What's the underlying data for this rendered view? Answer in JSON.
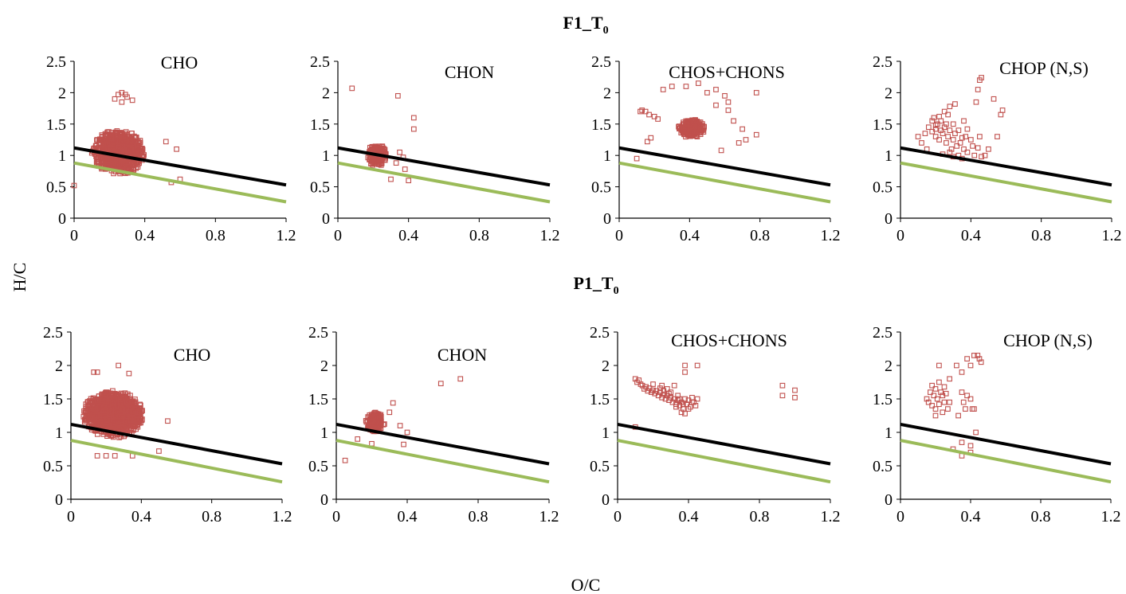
{
  "figure": {
    "y_axis_label": "H/C",
    "x_axis_label": "O/C",
    "rows": [
      {
        "title_main": "F1_T",
        "title_sub": "0"
      },
      {
        "title_main": "P1_T",
        "title_sub": "0"
      }
    ],
    "colors": {
      "points": "#c0504d",
      "upper_line": "#000000",
      "lower_line": "#9bbb59"
    },
    "marker": "hollow-square"
  },
  "chart_data": [
    {
      "type": "scatter",
      "row": "F1_T0",
      "title": "CHO",
      "xlim": [
        0,
        1.2
      ],
      "ylim": [
        0,
        2.5
      ],
      "xticks": [
        "0",
        "0.4",
        "0.8",
        "1.2"
      ],
      "yticks": [
        "0",
        "0.5",
        "1",
        "1.5",
        "2",
        "2.5"
      ],
      "lines": [
        {
          "color": "black",
          "x": [
            0,
            1.2
          ],
          "y": [
            1.12,
            0.53
          ]
        },
        {
          "color": "green",
          "x": [
            0,
            1.2
          ],
          "y": [
            0.88,
            0.26
          ]
        }
      ],
      "cloud": {
        "center": [
          0.25,
          1.05
        ],
        "spread": [
          0.14,
          0.33
        ],
        "count": 900
      },
      "points": [
        [
          0.0,
          0.52
        ],
        [
          0.25,
          1.97
        ],
        [
          0.27,
          2.0
        ],
        [
          0.29,
          1.97
        ],
        [
          0.23,
          1.9
        ],
        [
          0.33,
          1.88
        ],
        [
          0.27,
          1.85
        ],
        [
          0.3,
          1.93
        ],
        [
          0.58,
          1.1
        ],
        [
          0.6,
          0.62
        ],
        [
          0.55,
          0.57
        ],
        [
          0.52,
          1.22
        ]
      ]
    },
    {
      "type": "scatter",
      "row": "F1_T0",
      "title": "CHON",
      "xlim": [
        0,
        1.2
      ],
      "ylim": [
        0,
        2.5
      ],
      "xticks": [
        "0",
        "0.4",
        "0.8",
        "1.2"
      ],
      "yticks": [
        "0",
        "0.5",
        "1",
        "1.5",
        "2",
        "2.5"
      ],
      "lines": [
        {
          "color": "black",
          "x": [
            0,
            1.2
          ],
          "y": [
            1.12,
            0.53
          ]
        },
        {
          "color": "green",
          "x": [
            0,
            1.2
          ],
          "y": [
            0.88,
            0.26
          ]
        }
      ],
      "cloud": {
        "center": [
          0.22,
          1.0
        ],
        "spread": [
          0.05,
          0.17
        ],
        "count": 200
      },
      "points": [
        [
          0.08,
          2.07
        ],
        [
          0.34,
          1.95
        ],
        [
          0.43,
          1.6
        ],
        [
          0.43,
          1.42
        ],
        [
          0.4,
          0.6
        ],
        [
          0.3,
          0.62
        ],
        [
          0.38,
          0.78
        ],
        [
          0.37,
          0.97
        ],
        [
          0.35,
          1.05
        ],
        [
          0.33,
          0.88
        ]
      ]
    },
    {
      "type": "scatter",
      "row": "F1_T0",
      "title": "CHOS+CHONS",
      "xlim": [
        0,
        1.2
      ],
      "ylim": [
        0,
        2.5
      ],
      "xticks": [
        "0",
        "0.4",
        "0.8",
        "1.2"
      ],
      "yticks": [
        "0",
        "0.5",
        "1",
        "1.5",
        "2",
        "2.5"
      ],
      "lines": [
        {
          "color": "black",
          "x": [
            0,
            1.2
          ],
          "y": [
            1.12,
            0.53
          ]
        },
        {
          "color": "green",
          "x": [
            0,
            1.2
          ],
          "y": [
            0.88,
            0.26
          ]
        }
      ],
      "cloud": {
        "center": [
          0.41,
          1.43
        ],
        "spread": [
          0.07,
          0.14
        ],
        "count": 260
      },
      "points": [
        [
          0.1,
          0.95
        ],
        [
          0.12,
          1.7
        ],
        [
          0.13,
          1.72
        ],
        [
          0.15,
          1.7
        ],
        [
          0.17,
          1.65
        ],
        [
          0.2,
          1.62
        ],
        [
          0.22,
          1.58
        ],
        [
          0.18,
          1.28
        ],
        [
          0.16,
          1.22
        ],
        [
          0.25,
          2.05
        ],
        [
          0.3,
          2.1
        ],
        [
          0.38,
          2.1
        ],
        [
          0.45,
          2.15
        ],
        [
          0.5,
          2.0
        ],
        [
          0.55,
          2.05
        ],
        [
          0.6,
          1.95
        ],
        [
          0.62,
          1.72
        ],
        [
          0.65,
          1.55
        ],
        [
          0.7,
          1.42
        ],
        [
          0.72,
          1.25
        ],
        [
          0.78,
          2.0
        ],
        [
          0.78,
          1.33
        ],
        [
          0.68,
          1.2
        ],
        [
          0.58,
          1.08
        ],
        [
          0.62,
          1.85
        ],
        [
          0.55,
          1.8
        ]
      ]
    },
    {
      "type": "scatter",
      "row": "F1_T0",
      "title": "CHOP (N,S)",
      "xlim": [
        0,
        1.2
      ],
      "ylim": [
        0,
        2.5
      ],
      "xticks": [
        "0",
        "0.4",
        "0.8",
        "1.2"
      ],
      "yticks": [
        "0",
        "0.5",
        "1",
        "1.5",
        "2",
        "2.5"
      ],
      "lines": [
        {
          "color": "black",
          "x": [
            0,
            1.2
          ],
          "y": [
            1.12,
            0.53
          ]
        },
        {
          "color": "green",
          "x": [
            0,
            1.2
          ],
          "y": [
            0.88,
            0.26
          ]
        }
      ],
      "cloud": null,
      "points": [
        [
          0.1,
          1.3
        ],
        [
          0.12,
          1.2
        ],
        [
          0.14,
          1.35
        ],
        [
          0.15,
          1.1
        ],
        [
          0.16,
          1.45
        ],
        [
          0.18,
          1.55
        ],
        [
          0.19,
          1.6
        ],
        [
          0.2,
          1.3
        ],
        [
          0.2,
          1.42
        ],
        [
          0.21,
          1.5
        ],
        [
          0.22,
          1.62
        ],
        [
          0.22,
          1.25
        ],
        [
          0.23,
          1.4
        ],
        [
          0.23,
          1.55
        ],
        [
          0.24,
          1.35
        ],
        [
          0.25,
          1.45
        ],
        [
          0.25,
          1.7
        ],
        [
          0.26,
          1.2
        ],
        [
          0.26,
          1.5
        ],
        [
          0.27,
          1.3
        ],
        [
          0.27,
          1.65
        ],
        [
          0.28,
          1.4
        ],
        [
          0.28,
          1.78
        ],
        [
          0.29,
          1.1
        ],
        [
          0.3,
          1.5
        ],
        [
          0.3,
          1.25
        ],
        [
          0.31,
          1.82
        ],
        [
          0.31,
          1.35
        ],
        [
          0.32,
          1.15
        ],
        [
          0.33,
          1.0
        ],
        [
          0.34,
          1.2
        ],
        [
          0.35,
          0.95
        ],
        [
          0.36,
          1.1
        ],
        [
          0.37,
          1.3
        ],
        [
          0.38,
          1.05
        ],
        [
          0.4,
          1.25
        ],
        [
          0.41,
          1.15
        ],
        [
          0.42,
          1.0
        ],
        [
          0.44,
          1.12
        ],
        [
          0.45,
          1.3
        ],
        [
          0.46,
          0.98
        ],
        [
          0.38,
          1.42
        ],
        [
          0.36,
          1.55
        ],
        [
          0.43,
          1.85
        ],
        [
          0.44,
          2.05
        ],
        [
          0.45,
          2.2
        ],
        [
          0.46,
          2.24
        ],
        [
          0.48,
          1.0
        ],
        [
          0.5,
          1.1
        ],
        [
          0.53,
          1.9
        ],
        [
          0.57,
          1.65
        ],
        [
          0.58,
          1.72
        ],
        [
          0.55,
          1.3
        ],
        [
          0.2,
          1.48
        ],
        [
          0.18,
          1.38
        ],
        [
          0.28,
          1.05
        ],
        [
          0.3,
          0.98
        ],
        [
          0.24,
          1.02
        ],
        [
          0.33,
          1.4
        ],
        [
          0.35,
          1.28
        ]
      ]
    },
    {
      "type": "scatter",
      "row": "P1_T0",
      "title": "CHO",
      "xlim": [
        0,
        1.2
      ],
      "ylim": [
        0,
        2.5
      ],
      "xticks": [
        "0",
        "0.4",
        "0.8",
        "1.2"
      ],
      "yticks": [
        "0",
        "0.5",
        "1",
        "1.5",
        "2",
        "2.5"
      ],
      "lines": [
        {
          "color": "black",
          "x": [
            0,
            1.2
          ],
          "y": [
            1.12,
            0.53
          ]
        },
        {
          "color": "green",
          "x": [
            0,
            1.2
          ],
          "y": [
            0.88,
            0.26
          ]
        }
      ],
      "cloud": {
        "center": [
          0.24,
          1.27
        ],
        "spread": [
          0.16,
          0.33
        ],
        "count": 1100
      },
      "points": [
        [
          0.27,
          2.0
        ],
        [
          0.13,
          1.9
        ],
        [
          0.15,
          1.9
        ],
        [
          0.33,
          1.88
        ],
        [
          0.55,
          1.17
        ],
        [
          0.5,
          0.72
        ],
        [
          0.15,
          0.65
        ],
        [
          0.2,
          0.65
        ],
        [
          0.25,
          0.65
        ],
        [
          0.35,
          0.65
        ]
      ]
    },
    {
      "type": "scatter",
      "row": "P1_T0",
      "title": "CHON",
      "xlim": [
        0,
        1.2
      ],
      "ylim": [
        0,
        2.5
      ],
      "xticks": [
        "0",
        "0.4",
        "0.8",
        "1.2"
      ],
      "yticks": [
        "0",
        "0.5",
        "1",
        "1.5",
        "2",
        "2.5"
      ],
      "lines": [
        {
          "color": "black",
          "x": [
            0,
            1.2
          ],
          "y": [
            1.12,
            0.53
          ]
        },
        {
          "color": "green",
          "x": [
            0,
            1.2
          ],
          "y": [
            0.88,
            0.26
          ]
        }
      ],
      "cloud": {
        "center": [
          0.22,
          1.15
        ],
        "spread": [
          0.05,
          0.14
        ],
        "count": 170
      },
      "points": [
        [
          0.05,
          0.58
        ],
        [
          0.59,
          1.73
        ],
        [
          0.7,
          1.8
        ],
        [
          0.4,
          1.0
        ],
        [
          0.38,
          0.82
        ],
        [
          0.36,
          1.1
        ],
        [
          0.32,
          1.44
        ],
        [
          0.3,
          1.3
        ],
        [
          0.12,
          0.9
        ],
        [
          0.2,
          0.83
        ]
      ]
    },
    {
      "type": "scatter",
      "row": "P1_T0",
      "title": "CHOS+CHONS",
      "xlim": [
        0,
        1.2
      ],
      "ylim": [
        0,
        2.5
      ],
      "xticks": [
        "0",
        "0.4",
        "0.8",
        "1.2"
      ],
      "yticks": [
        "0",
        "0.5",
        "1",
        "1.5",
        "2",
        "2.5"
      ],
      "lines": [
        {
          "color": "black",
          "x": [
            0,
            1.2
          ],
          "y": [
            1.12,
            0.53
          ]
        },
        {
          "color": "green",
          "x": [
            0,
            1.2
          ],
          "y": [
            0.88,
            0.26
          ]
        }
      ],
      "cloud": null,
      "points": [
        [
          0.1,
          1.8
        ],
        [
          0.11,
          1.75
        ],
        [
          0.12,
          1.78
        ],
        [
          0.13,
          1.72
        ],
        [
          0.14,
          1.7
        ],
        [
          0.15,
          1.65
        ],
        [
          0.16,
          1.68
        ],
        [
          0.17,
          1.62
        ],
        [
          0.18,
          1.66
        ],
        [
          0.19,
          1.6
        ],
        [
          0.2,
          1.63
        ],
        [
          0.21,
          1.58
        ],
        [
          0.22,
          1.62
        ],
        [
          0.23,
          1.55
        ],
        [
          0.24,
          1.6
        ],
        [
          0.25,
          1.52
        ],
        [
          0.26,
          1.57
        ],
        [
          0.27,
          1.5
        ],
        [
          0.28,
          1.55
        ],
        [
          0.29,
          1.48
        ],
        [
          0.3,
          1.52
        ],
        [
          0.31,
          1.45
        ],
        [
          0.32,
          1.5
        ],
        [
          0.33,
          1.42
        ],
        [
          0.34,
          1.48
        ],
        [
          0.35,
          1.4
        ],
        [
          0.36,
          1.45
        ],
        [
          0.37,
          1.35
        ],
        [
          0.38,
          1.5
        ],
        [
          0.39,
          1.42
        ],
        [
          0.4,
          1.48
        ],
        [
          0.41,
          1.38
        ],
        [
          0.42,
          1.52
        ],
        [
          0.43,
          1.45
        ],
        [
          0.44,
          1.4
        ],
        [
          0.45,
          1.5
        ],
        [
          0.36,
          1.3
        ],
        [
          0.38,
          1.28
        ],
        [
          0.34,
          1.55
        ],
        [
          0.3,
          1.6
        ],
        [
          0.28,
          1.65
        ],
        [
          0.25,
          1.7
        ],
        [
          0.2,
          1.72
        ],
        [
          0.33,
          1.38
        ],
        [
          0.4,
          1.35
        ],
        [
          0.38,
          2.0
        ],
        [
          0.45,
          2.0
        ],
        [
          0.38,
          1.9
        ],
        [
          0.32,
          1.7
        ],
        [
          0.1,
          1.08
        ],
        [
          0.93,
          1.7
        ],
        [
          0.93,
          1.55
        ],
        [
          1.0,
          1.63
        ],
        [
          1.0,
          1.52
        ],
        [
          0.35,
          1.5
        ],
        [
          0.42,
          1.45
        ],
        [
          0.37,
          1.42
        ],
        [
          0.29,
          1.58
        ],
        [
          0.26,
          1.62
        ],
        [
          0.24,
          1.66
        ]
      ]
    },
    {
      "type": "scatter",
      "row": "P1_T0",
      "title": "CHOP (N,S)",
      "xlim": [
        0,
        1.2
      ],
      "ylim": [
        0,
        2.5
      ],
      "xticks": [
        "0",
        "0.4",
        "0.8",
        "1.2"
      ],
      "yticks": [
        "0",
        "0.5",
        "1",
        "1.5",
        "2",
        "2.5"
      ],
      "lines": [
        {
          "color": "black",
          "x": [
            0,
            1.2
          ],
          "y": [
            1.12,
            0.53
          ]
        },
        {
          "color": "green",
          "x": [
            0,
            1.2
          ],
          "y": [
            0.88,
            0.26
          ]
        }
      ],
      "cloud": null,
      "points": [
        [
          0.15,
          1.5
        ],
        [
          0.16,
          1.45
        ],
        [
          0.17,
          1.6
        ],
        [
          0.18,
          1.4
        ],
        [
          0.18,
          1.7
        ],
        [
          0.19,
          1.55
        ],
        [
          0.2,
          1.35
        ],
        [
          0.2,
          1.65
        ],
        [
          0.21,
          1.5
        ],
        [
          0.22,
          1.75
        ],
        [
          0.22,
          1.42
        ],
        [
          0.23,
          1.6
        ],
        [
          0.24,
          1.3
        ],
        [
          0.24,
          1.55
        ],
        [
          0.25,
          1.68
        ],
        [
          0.25,
          1.45
        ],
        [
          0.26,
          1.58
        ],
        [
          0.27,
          1.35
        ],
        [
          0.22,
          2.0
        ],
        [
          0.28,
          1.8
        ],
        [
          0.32,
          2.0
        ],
        [
          0.35,
          1.9
        ],
        [
          0.38,
          2.1
        ],
        [
          0.4,
          2.0
        ],
        [
          0.42,
          2.15
        ],
        [
          0.44,
          2.15
        ],
        [
          0.45,
          2.1
        ],
        [
          0.46,
          2.05
        ],
        [
          0.35,
          1.6
        ],
        [
          0.38,
          1.55
        ],
        [
          0.36,
          1.45
        ],
        [
          0.4,
          1.5
        ],
        [
          0.41,
          1.35
        ],
        [
          0.42,
          1.35
        ],
        [
          0.37,
          1.35
        ],
        [
          0.43,
          1.0
        ],
        [
          0.4,
          0.8
        ],
        [
          0.35,
          0.85
        ],
        [
          0.3,
          0.75
        ],
        [
          0.35,
          0.65
        ],
        [
          0.4,
          0.7
        ],
        [
          0.2,
          1.25
        ],
        [
          0.28,
          1.45
        ],
        [
          0.33,
          1.25
        ]
      ]
    }
  ]
}
